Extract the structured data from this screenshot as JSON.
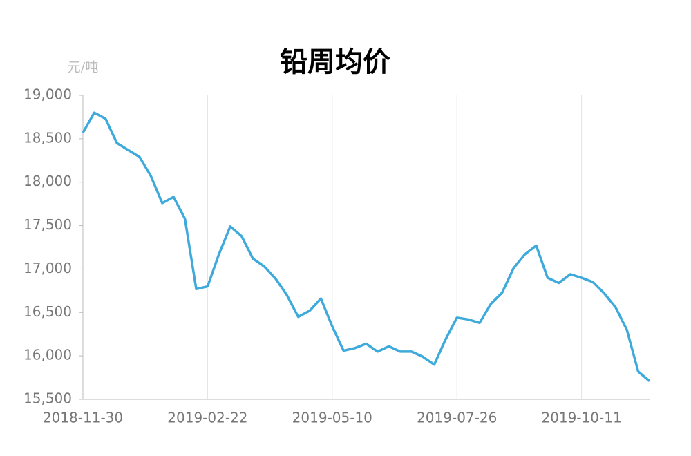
{
  "chart_data": {
    "type": "line",
    "title": "铅周均价",
    "y_unit": "元/吨",
    "categories": [
      "2018-11-30",
      null,
      null,
      null,
      null,
      null,
      null,
      null,
      null,
      null,
      null,
      "2019-02-22",
      null,
      null,
      null,
      null,
      null,
      null,
      null,
      null,
      null,
      null,
      "2019-05-10",
      null,
      null,
      null,
      null,
      null,
      null,
      null,
      null,
      null,
      null,
      "2019-07-26",
      null,
      null,
      null,
      null,
      null,
      null,
      null,
      null,
      null,
      null,
      "2019-10-11",
      null,
      null,
      null,
      null,
      null,
      null
    ],
    "values": [
      18570,
      18800,
      18730,
      18450,
      18370,
      18290,
      18070,
      17760,
      17830,
      17580,
      16770,
      16800,
      17170,
      17490,
      17380,
      17120,
      17030,
      16890,
      16700,
      16450,
      16520,
      16660,
      16340,
      16060,
      16090,
      16140,
      16050,
      16110,
      16050,
      16050,
      15990,
      15900,
      16190,
      16440,
      16420,
      16380,
      16600,
      16730,
      17010,
      17170,
      17270,
      16900,
      16840,
      16940,
      16900,
      16850,
      16720,
      16560,
      16300,
      15820,
      15710
    ],
    "color": "#3eaadb",
    "ylim": [
      15500,
      19000
    ],
    "yticks": [
      {
        "value": 15500,
        "label": "15,500"
      },
      {
        "value": 16000,
        "label": "16,000"
      },
      {
        "value": 16500,
        "label": "16,500"
      },
      {
        "value": 17000,
        "label": "17,000"
      },
      {
        "value": 17500,
        "label": "17,500"
      },
      {
        "value": 18000,
        "label": "18,000"
      },
      {
        "value": 18500,
        "label": "18,500"
      },
      {
        "value": 19000,
        "label": "19,000"
      }
    ],
    "grid": true
  }
}
